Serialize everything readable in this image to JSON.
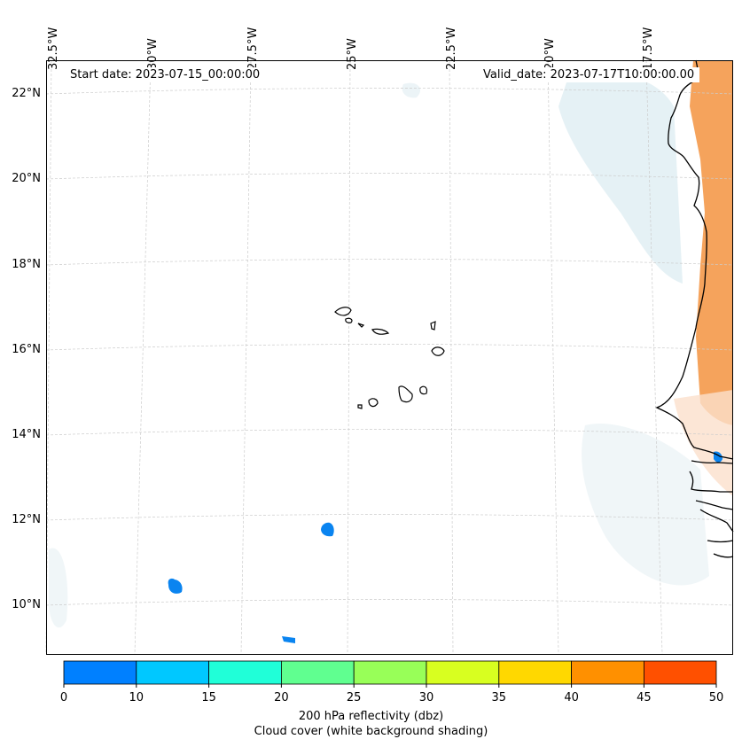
{
  "map": {
    "start_date_label": "Start date: 2023-07-15_00:00:00",
    "valid_date_label": "Valid_date: 2023-07-17T10:00:00.00",
    "lon_labels": [
      "32.5°W",
      "30°W",
      "27.5°W",
      "25°W",
      "22.5°W",
      "20°W",
      "17.5°W"
    ],
    "lat_labels": [
      "22°N",
      "20°N",
      "18°N",
      "16°N",
      "14°N",
      "12°N",
      "10°N"
    ],
    "extent": {
      "lon_min": -33.0,
      "lon_max": -15.6,
      "lat_min": 8.9,
      "lat_max": 22.8
    },
    "colors": {
      "coastline": "#000000",
      "gridline": "#cccccc",
      "cloud_shading": "#d6e9ef",
      "reflectivity_orange": "#f5a35c"
    }
  },
  "colorbar": {
    "ticks": [
      "0",
      "10",
      "15",
      "20",
      "25",
      "30",
      "35",
      "40",
      "45",
      "50"
    ],
    "colors": [
      "#0080ff",
      "#00c8ff",
      "#20ffd8",
      "#60ff90",
      "#98ff58",
      "#d8ff20",
      "#ffd800",
      "#ff9000",
      "#ff5000"
    ],
    "label_line1": "200 hPa reflectivity (dbz)",
    "label_line2": "Cloud cover (white background shading)"
  }
}
